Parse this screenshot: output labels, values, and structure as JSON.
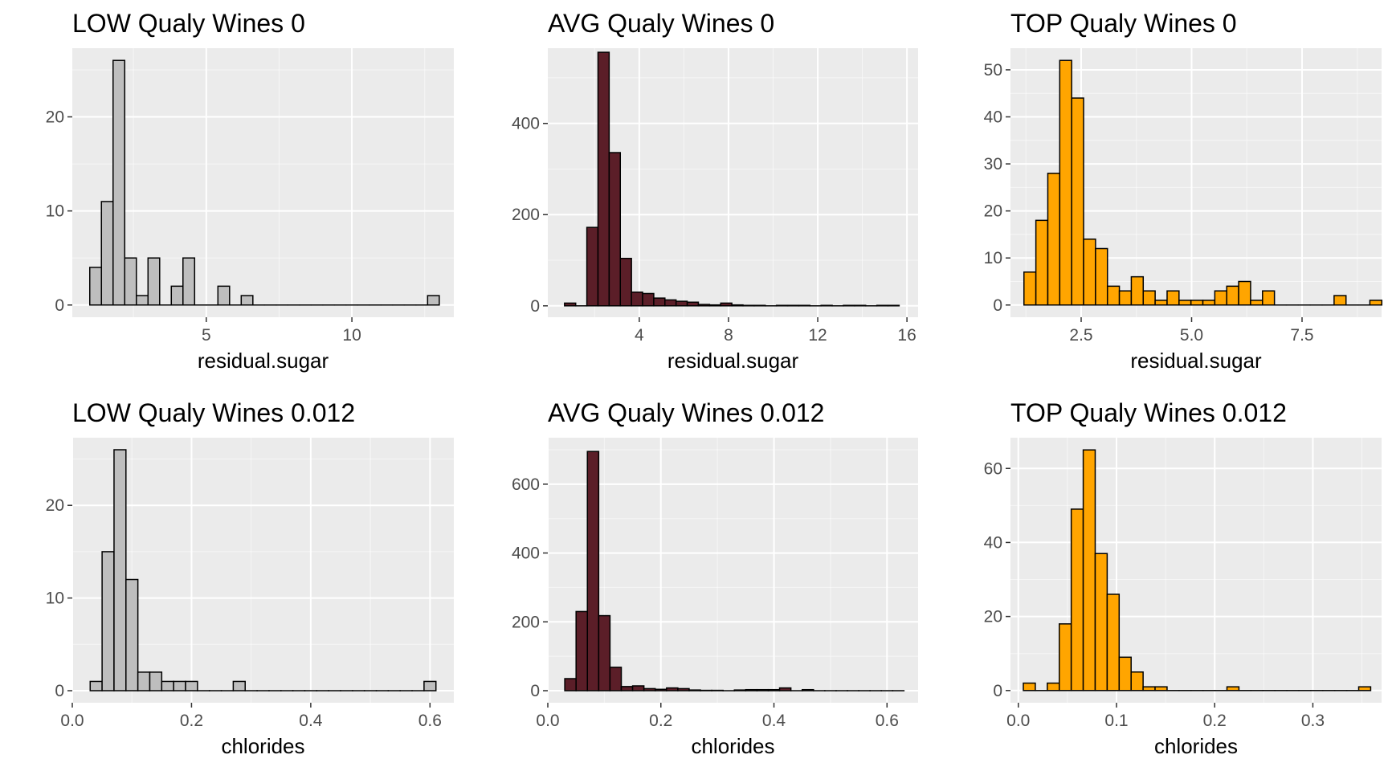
{
  "style": {
    "panel_bg": "#ebebeb",
    "grid_major": "#ffffff",
    "tick_color": "#333333",
    "bar_stroke": "#000000"
  },
  "chart_data": [
    {
      "type": "bar",
      "title": "LOW  Qualy Wines 0",
      "xlabel": "residual.sugar",
      "color": "#bebebe",
      "xlim": [
        0.4,
        13.5
      ],
      "ylim": [
        -1.3,
        27.3
      ],
      "xticks": [
        5,
        10
      ],
      "xtick_labels": [
        "5",
        "10"
      ],
      "yticks": [
        0,
        10,
        20
      ],
      "ytick_labels": [
        "0",
        "10",
        "20"
      ],
      "bin_width": 0.4,
      "bins": [
        {
          "x": 1.2,
          "count": 4
        },
        {
          "x": 1.6,
          "count": 11
        },
        {
          "x": 2.0,
          "count": 26
        },
        {
          "x": 2.4,
          "count": 5
        },
        {
          "x": 2.8,
          "count": 1
        },
        {
          "x": 3.2,
          "count": 5
        },
        {
          "x": 3.6,
          "count": 0
        },
        {
          "x": 4.0,
          "count": 2
        },
        {
          "x": 4.4,
          "count": 5
        },
        {
          "x": 4.8,
          "count": 0
        },
        {
          "x": 5.2,
          "count": 0
        },
        {
          "x": 5.6,
          "count": 2
        },
        {
          "x": 6.0,
          "count": 0
        },
        {
          "x": 6.4,
          "count": 1
        },
        {
          "x": 6.8,
          "count": 0
        },
        {
          "x": 7.2,
          "count": 0
        },
        {
          "x": 7.6,
          "count": 0
        },
        {
          "x": 8.0,
          "count": 0
        },
        {
          "x": 8.4,
          "count": 0
        },
        {
          "x": 8.8,
          "count": 0
        },
        {
          "x": 9.2,
          "count": 0
        },
        {
          "x": 9.6,
          "count": 0
        },
        {
          "x": 10.0,
          "count": 0
        },
        {
          "x": 10.4,
          "count": 0
        },
        {
          "x": 10.8,
          "count": 0
        },
        {
          "x": 11.2,
          "count": 0
        },
        {
          "x": 11.6,
          "count": 0
        },
        {
          "x": 12.0,
          "count": 0
        },
        {
          "x": 12.4,
          "count": 0
        },
        {
          "x": 12.8,
          "count": 1
        }
      ]
    },
    {
      "type": "bar",
      "title": "AVG  Qualy Wines 0",
      "xlabel": "residual.sugar",
      "color": "#5b1e28",
      "xlim": [
        -0.1,
        16.5
      ],
      "ylim": [
        -25,
        565
      ],
      "xticks": [
        4,
        8,
        12,
        16
      ],
      "xtick_labels": [
        "4",
        "8",
        "12",
        "16"
      ],
      "yticks": [
        0,
        200,
        400
      ],
      "ytick_labels": [
        "0",
        "200",
        "400"
      ],
      "bin_width": 0.5,
      "bins": [
        {
          "x": 0.9,
          "count": 6
        },
        {
          "x": 1.4,
          "count": 0
        },
        {
          "x": 1.9,
          "count": 172
        },
        {
          "x": 2.4,
          "count": 556
        },
        {
          "x": 2.9,
          "count": 336
        },
        {
          "x": 3.4,
          "count": 104
        },
        {
          "x": 3.9,
          "count": 30
        },
        {
          "x": 4.4,
          "count": 27
        },
        {
          "x": 4.9,
          "count": 17
        },
        {
          "x": 5.4,
          "count": 13
        },
        {
          "x": 5.9,
          "count": 10
        },
        {
          "x": 6.4,
          "count": 8
        },
        {
          "x": 6.9,
          "count": 3
        },
        {
          "x": 7.4,
          "count": 2
        },
        {
          "x": 7.9,
          "count": 6
        },
        {
          "x": 8.4,
          "count": 2
        },
        {
          "x": 8.9,
          "count": 1
        },
        {
          "x": 9.4,
          "count": 1
        },
        {
          "x": 9.9,
          "count": 0
        },
        {
          "x": 10.4,
          "count": 1
        },
        {
          "x": 10.9,
          "count": 1
        },
        {
          "x": 11.4,
          "count": 1
        },
        {
          "x": 11.9,
          "count": 0
        },
        {
          "x": 12.4,
          "count": 1
        },
        {
          "x": 12.9,
          "count": 0
        },
        {
          "x": 13.4,
          "count": 1
        },
        {
          "x": 13.9,
          "count": 1
        },
        {
          "x": 14.4,
          "count": 0
        },
        {
          "x": 14.9,
          "count": 1
        },
        {
          "x": 15.4,
          "count": 1
        }
      ]
    },
    {
      "type": "bar",
      "title": "TOP  Qualy Wines 0",
      "xlabel": "residual.sugar",
      "color": "#ffa500",
      "xlim": [
        0.9,
        9.3
      ],
      "ylim": [
        -2.6,
        54.6
      ],
      "xticks": [
        2.5,
        5.0,
        7.5
      ],
      "xtick_labels": [
        "2.5",
        "5.0",
        "7.5"
      ],
      "yticks": [
        0,
        10,
        20,
        30,
        40,
        50
      ],
      "ytick_labels": [
        "0",
        "10",
        "20",
        "30",
        "40",
        "50"
      ],
      "bin_width": 0.27,
      "bins": [
        {
          "x": 1.34,
          "count": 7
        },
        {
          "x": 1.61,
          "count": 18
        },
        {
          "x": 1.88,
          "count": 28
        },
        {
          "x": 2.15,
          "count": 52
        },
        {
          "x": 2.42,
          "count": 44
        },
        {
          "x": 2.69,
          "count": 14
        },
        {
          "x": 2.96,
          "count": 12
        },
        {
          "x": 3.23,
          "count": 4
        },
        {
          "x": 3.5,
          "count": 3
        },
        {
          "x": 3.77,
          "count": 6
        },
        {
          "x": 4.04,
          "count": 3
        },
        {
          "x": 4.31,
          "count": 1
        },
        {
          "x": 4.58,
          "count": 3
        },
        {
          "x": 4.85,
          "count": 1
        },
        {
          "x": 5.12,
          "count": 1
        },
        {
          "x": 5.39,
          "count": 1
        },
        {
          "x": 5.66,
          "count": 3
        },
        {
          "x": 5.93,
          "count": 4
        },
        {
          "x": 6.2,
          "count": 5
        },
        {
          "x": 6.47,
          "count": 1
        },
        {
          "x": 6.74,
          "count": 3
        },
        {
          "x": 7.01,
          "count": 0
        },
        {
          "x": 7.28,
          "count": 0
        },
        {
          "x": 7.55,
          "count": 0
        },
        {
          "x": 7.82,
          "count": 0
        },
        {
          "x": 8.09,
          "count": 0
        },
        {
          "x": 8.36,
          "count": 2
        },
        {
          "x": 8.63,
          "count": 0
        },
        {
          "x": 8.9,
          "count": 0
        },
        {
          "x": 9.17,
          "count": 1
        }
      ]
    },
    {
      "type": "bar",
      "title": "LOW  Qualy Wines 0.012",
      "xlabel": "chlorides",
      "color": "#bebebe",
      "xlim": [
        0.0,
        0.64
      ],
      "ylim": [
        -1.3,
        27.3
      ],
      "xticks": [
        0.0,
        0.2,
        0.4,
        0.6
      ],
      "xtick_labels": [
        "0.0",
        "0.2",
        "0.4",
        "0.6"
      ],
      "yticks": [
        0,
        10,
        20
      ],
      "ytick_labels": [
        "0",
        "10",
        "20"
      ],
      "bin_width": 0.02,
      "bins": [
        {
          "x": 0.04,
          "count": 1
        },
        {
          "x": 0.06,
          "count": 15
        },
        {
          "x": 0.08,
          "count": 26
        },
        {
          "x": 0.1,
          "count": 12
        },
        {
          "x": 0.12,
          "count": 2
        },
        {
          "x": 0.14,
          "count": 2
        },
        {
          "x": 0.16,
          "count": 1
        },
        {
          "x": 0.18,
          "count": 1
        },
        {
          "x": 0.2,
          "count": 1
        },
        {
          "x": 0.22,
          "count": 0
        },
        {
          "x": 0.24,
          "count": 0
        },
        {
          "x": 0.26,
          "count": 0
        },
        {
          "x": 0.28,
          "count": 1
        },
        {
          "x": 0.3,
          "count": 0
        },
        {
          "x": 0.32,
          "count": 0
        },
        {
          "x": 0.34,
          "count": 0
        },
        {
          "x": 0.36,
          "count": 0
        },
        {
          "x": 0.38,
          "count": 0
        },
        {
          "x": 0.4,
          "count": 0
        },
        {
          "x": 0.42,
          "count": 0
        },
        {
          "x": 0.44,
          "count": 0
        },
        {
          "x": 0.46,
          "count": 0
        },
        {
          "x": 0.48,
          "count": 0
        },
        {
          "x": 0.5,
          "count": 0
        },
        {
          "x": 0.52,
          "count": 0
        },
        {
          "x": 0.54,
          "count": 0
        },
        {
          "x": 0.56,
          "count": 0
        },
        {
          "x": 0.58,
          "count": 0
        },
        {
          "x": 0.6,
          "count": 1
        }
      ]
    },
    {
      "type": "bar",
      "title": "AVG  Qualy Wines 0.012",
      "xlabel": "chlorides",
      "color": "#5b1e28",
      "xlim": [
        0.0,
        0.655
      ],
      "ylim": [
        -35,
        735
      ],
      "xticks": [
        0.0,
        0.2,
        0.4,
        0.6
      ],
      "xtick_labels": [
        "0.0",
        "0.2",
        "0.4",
        "0.6"
      ],
      "yticks": [
        0,
        200,
        400,
        600
      ],
      "ytick_labels": [
        "0",
        "200",
        "400",
        "600"
      ],
      "bin_width": 0.02,
      "bins": [
        {
          "x": 0.04,
          "count": 35
        },
        {
          "x": 0.06,
          "count": 230
        },
        {
          "x": 0.08,
          "count": 695
        },
        {
          "x": 0.1,
          "count": 218
        },
        {
          "x": 0.12,
          "count": 68
        },
        {
          "x": 0.14,
          "count": 12
        },
        {
          "x": 0.16,
          "count": 14
        },
        {
          "x": 0.18,
          "count": 6
        },
        {
          "x": 0.2,
          "count": 4
        },
        {
          "x": 0.22,
          "count": 8
        },
        {
          "x": 0.24,
          "count": 6
        },
        {
          "x": 0.26,
          "count": 2
        },
        {
          "x": 0.28,
          "count": 1
        },
        {
          "x": 0.3,
          "count": 1
        },
        {
          "x": 0.32,
          "count": 0
        },
        {
          "x": 0.34,
          "count": 2
        },
        {
          "x": 0.36,
          "count": 3
        },
        {
          "x": 0.38,
          "count": 3
        },
        {
          "x": 0.4,
          "count": 3
        },
        {
          "x": 0.42,
          "count": 8
        },
        {
          "x": 0.44,
          "count": 0
        },
        {
          "x": 0.46,
          "count": 3
        },
        {
          "x": 0.48,
          "count": 0
        },
        {
          "x": 0.5,
          "count": 0
        },
        {
          "x": 0.52,
          "count": 0
        },
        {
          "x": 0.54,
          "count": 0
        },
        {
          "x": 0.56,
          "count": 0
        },
        {
          "x": 0.58,
          "count": 0
        },
        {
          "x": 0.6,
          "count": 0
        },
        {
          "x": 0.62,
          "count": 0
        }
      ]
    },
    {
      "type": "bar",
      "title": "TOP  Qualy Wines 0.012",
      "xlabel": "chlorides",
      "color": "#ffa500",
      "xlim": [
        -0.008,
        0.37
      ],
      "ylim": [
        -3.3,
        68.3
      ],
      "xticks": [
        0.0,
        0.1,
        0.2,
        0.3
      ],
      "xtick_labels": [
        "0.0",
        "0.1",
        "0.2",
        "0.3"
      ],
      "yticks": [
        0,
        20,
        40,
        60
      ],
      "ytick_labels": [
        "0",
        "20",
        "40",
        "60"
      ],
      "bin_width": 0.0122,
      "bins": [
        {
          "x": 0.0112,
          "count": 2
        },
        {
          "x": 0.0234,
          "count": 0
        },
        {
          "x": 0.0356,
          "count": 2
        },
        {
          "x": 0.0478,
          "count": 18
        },
        {
          "x": 0.06,
          "count": 49
        },
        {
          "x": 0.0722,
          "count": 65
        },
        {
          "x": 0.0844,
          "count": 37
        },
        {
          "x": 0.0966,
          "count": 26
        },
        {
          "x": 0.1088,
          "count": 9
        },
        {
          "x": 0.121,
          "count": 5
        },
        {
          "x": 0.1332,
          "count": 1
        },
        {
          "x": 0.1454,
          "count": 1
        },
        {
          "x": 0.1576,
          "count": 0
        },
        {
          "x": 0.1698,
          "count": 0
        },
        {
          "x": 0.182,
          "count": 0
        },
        {
          "x": 0.1942,
          "count": 0
        },
        {
          "x": 0.2064,
          "count": 0
        },
        {
          "x": 0.2186,
          "count": 1
        },
        {
          "x": 0.2308,
          "count": 0
        },
        {
          "x": 0.243,
          "count": 0
        },
        {
          "x": 0.2552,
          "count": 0
        },
        {
          "x": 0.2674,
          "count": 0
        },
        {
          "x": 0.2796,
          "count": 0
        },
        {
          "x": 0.2918,
          "count": 0
        },
        {
          "x": 0.304,
          "count": 0
        },
        {
          "x": 0.3162,
          "count": 0
        },
        {
          "x": 0.3284,
          "count": 0
        },
        {
          "x": 0.3406,
          "count": 0
        },
        {
          "x": 0.3528,
          "count": 1
        }
      ]
    }
  ]
}
